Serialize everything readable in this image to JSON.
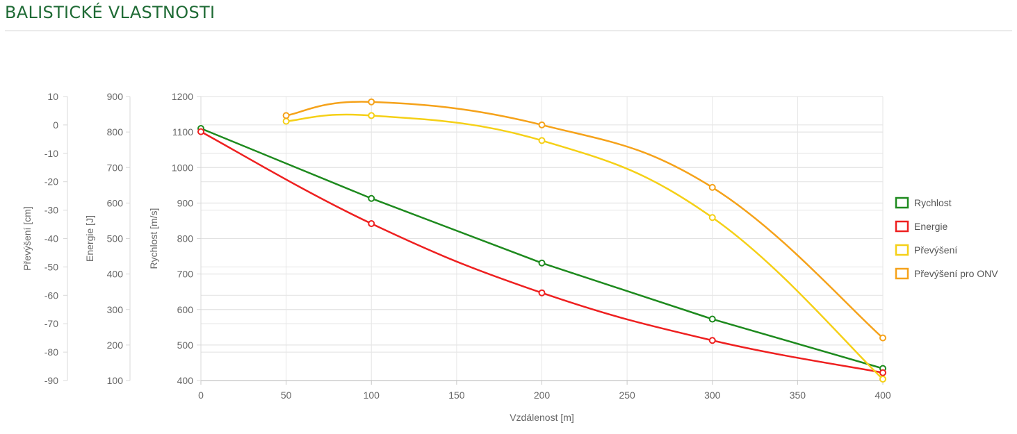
{
  "page": {
    "title": "BALISTICKÉ VLASTNOSTI"
  },
  "chart_data": {
    "type": "line",
    "x": [
      0,
      50,
      100,
      200,
      300,
      400
    ],
    "xlabel": "Vzdálenost [m]",
    "xlim": [
      0,
      400
    ],
    "xticks": [
      0,
      50,
      100,
      150,
      200,
      250,
      300,
      350,
      400
    ],
    "y_axes": [
      {
        "id": "prevyseni",
        "label": "Převýšení [cm]",
        "min": -90,
        "max": 10,
        "ticks": [
          10,
          0,
          -10,
          -20,
          -30,
          -40,
          -50,
          -60,
          -70,
          -80,
          -90
        ]
      },
      {
        "id": "energie",
        "label": "Energie [J]",
        "min": 100,
        "max": 900,
        "ticks": [
          900,
          800,
          700,
          600,
          500,
          400,
          300,
          200,
          100
        ]
      },
      {
        "id": "rychlost",
        "label": "Rychlost [m/s]",
        "min": 400,
        "max": 1200,
        "ticks": [
          1200,
          1100,
          1000,
          900,
          800,
          700,
          600,
          500,
          400
        ]
      }
    ],
    "series": [
      {
        "name": "Rychlost",
        "axis": "rychlost",
        "color": "#1e8a1e",
        "smooth": false,
        "points": [
          [
            0,
            1110
          ],
          [
            100,
            913
          ],
          [
            200,
            731
          ],
          [
            300,
            573
          ],
          [
            400,
            434
          ]
        ]
      },
      {
        "name": "Energie",
        "axis": "energie",
        "color": "#ee2020",
        "smooth": true,
        "points": [
          [
            0,
            801
          ],
          [
            100,
            542
          ],
          [
            200,
            347
          ],
          [
            300,
            213
          ],
          [
            400,
            122
          ]
        ]
      },
      {
        "name": "Převýšení",
        "axis": "prevyseni",
        "color": "#f5d017",
        "smooth": true,
        "points": [
          [
            50,
            1.3
          ],
          [
            100,
            3.3
          ],
          [
            200,
            -5.5
          ],
          [
            300,
            -32.6
          ],
          [
            400,
            -89.5
          ]
        ]
      },
      {
        "name": "Převýšení pro ONV",
        "axis": "prevyseni",
        "color": "#f5a21a",
        "smooth": true,
        "points": [
          [
            50,
            3.3
          ],
          [
            100,
            8.1
          ],
          [
            200,
            0
          ],
          [
            300,
            -22
          ],
          [
            400,
            -75
          ]
        ]
      }
    ],
    "legend": {
      "position": "right"
    },
    "grid": true
  }
}
